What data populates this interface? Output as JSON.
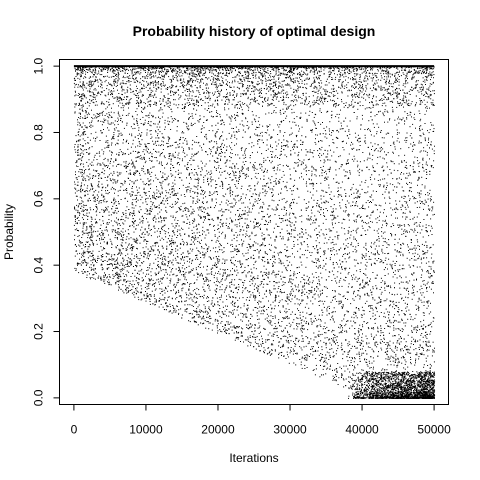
{
  "chart_data": {
    "type": "scatter",
    "title": "Probability history of optimal design",
    "xlabel": "Iterations",
    "ylabel": "Probability",
    "xlim": [
      -2000,
      52000
    ],
    "ylim": [
      -0.02,
      1.02
    ],
    "x_ticks": [
      0,
      10000,
      20000,
      30000,
      40000,
      50000
    ],
    "x_tick_labels": [
      "0",
      "10000",
      "20000",
      "30000",
      "40000",
      "50000"
    ],
    "y_ticks": [
      0.0,
      0.2,
      0.4,
      0.6,
      0.8,
      1.0
    ],
    "y_tick_labels": [
      "0.0",
      "0.2",
      "0.4",
      "0.6",
      "0.8",
      "1.0"
    ],
    "grid": false,
    "legend": "none",
    "point_color": "#000000",
    "x_range": [
      0,
      50000
    ],
    "n_iterations_plotted": 50000,
    "upper_band": {
      "y": 1.0
    },
    "lower_envelope": [
      {
        "x": 0,
        "y": 0.38
      },
      {
        "x": 40000,
        "y": 0.01
      },
      {
        "x": 50000,
        "y": 0.0
      }
    ],
    "dense_region_near_zero": {
      "x_from": 38000,
      "x_to": 50000,
      "y_from": 0.0,
      "y_to": 0.08
    }
  }
}
